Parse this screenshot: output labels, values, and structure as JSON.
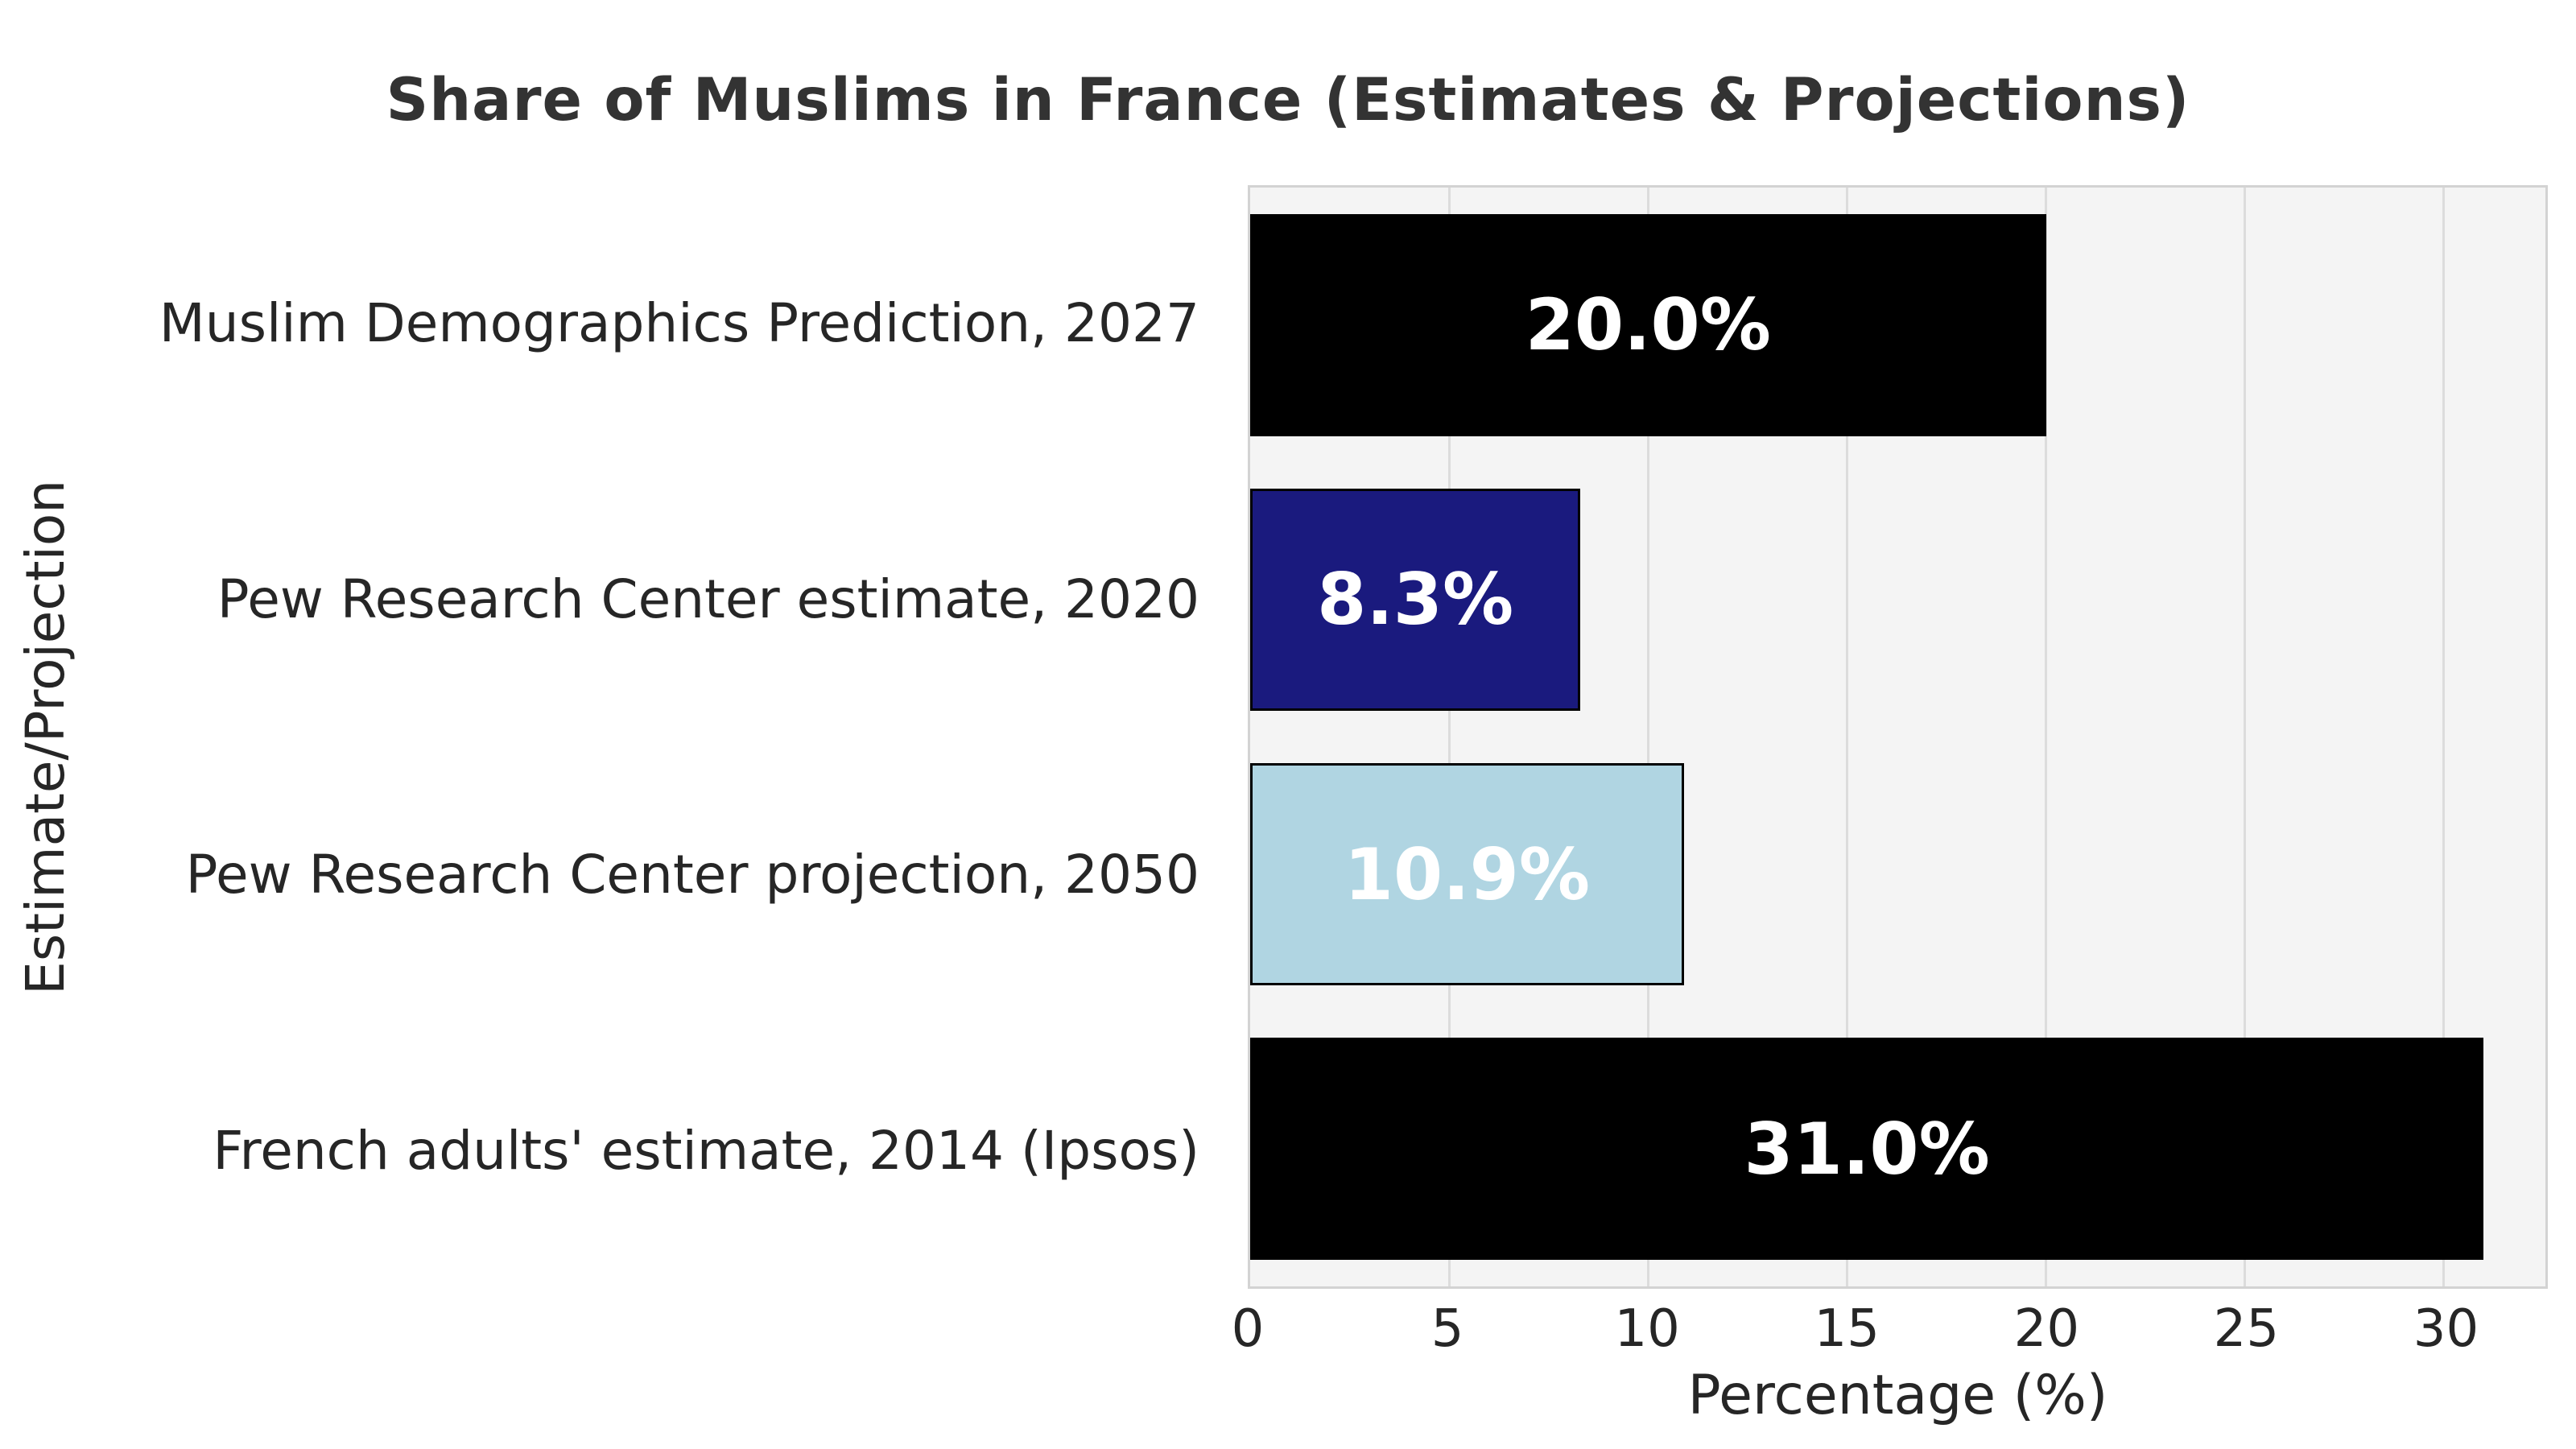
{
  "chart_data": {
    "type": "bar",
    "orientation": "horizontal",
    "title": "Share of Muslims in France (Estimates & Projections)",
    "categories": [
      "Muslim Demographics Prediction, 2027",
      "Pew Research Center estimate, 2020",
      "Pew Research Center projection, 2050",
      "French adults' estimate, 2014 (Ipsos)"
    ],
    "values": [
      20.0,
      8.3,
      10.9,
      31.0
    ],
    "value_labels": [
      "20.0%",
      "8.3%",
      "10.9%",
      "31.0%"
    ],
    "bar_colors": [
      "#000000",
      "#1a1a7e",
      "#b0d5e2",
      "#000000"
    ],
    "xlabel": "Percentage (%)",
    "ylabel": "Estimate/Projection",
    "xticks": [
      0,
      5,
      10,
      15,
      20,
      25,
      30
    ],
    "xlim": [
      0,
      32.55
    ],
    "grid": true,
    "legend_position": "none",
    "bar_height_fraction": 0.8
  },
  "colors": {
    "figure_background": "#ffffff",
    "plot_background": "#f4f4f4",
    "grid_line": "#dcdcdc",
    "plot_border": "#d3d3d3",
    "bar_edge": "#000000",
    "value_label_text": "#ffffff",
    "title_text": "#333333",
    "axis_text": "#262626"
  }
}
